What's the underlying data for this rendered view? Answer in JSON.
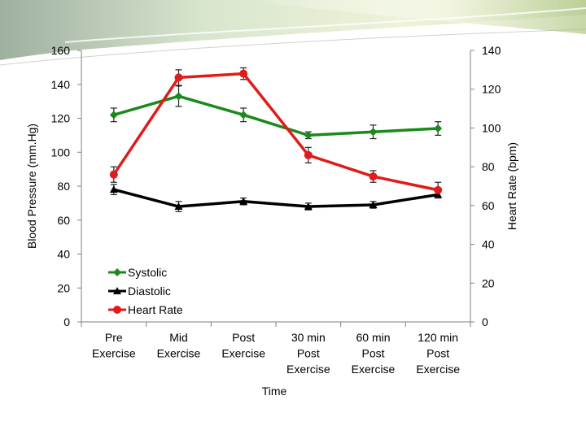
{
  "chart_data": {
    "type": "line",
    "categories": [
      [
        "Pre",
        "Exercise"
      ],
      [
        "Mid",
        "Exercise"
      ],
      [
        "Post",
        "Exercise"
      ],
      [
        "30 min",
        "Post",
        "Exercise"
      ],
      [
        "60 min",
        "Post",
        "Exercise"
      ],
      [
        "120 min",
        "Post",
        "Exercise"
      ]
    ],
    "xlabel": "Time",
    "ylabel_left": "Blood Pressure (mm.Hg)",
    "ylabel_right": "Heart Rate (bpm)",
    "ylim_left": [
      0,
      160
    ],
    "ylim_right": [
      0,
      140
    ],
    "yticks_left": [
      0,
      20,
      40,
      60,
      80,
      100,
      120,
      140,
      160
    ],
    "yticks_right": [
      0,
      20,
      40,
      60,
      80,
      100,
      120,
      140
    ],
    "series": [
      {
        "name": "Systolic",
        "axis": "left",
        "color": "#1a8a1a",
        "marker": "diamond",
        "values": [
          122,
          133,
          122,
          110,
          112,
          114
        ],
        "errors": [
          4,
          6,
          4,
          2,
          4,
          4
        ]
      },
      {
        "name": "Diastolic",
        "axis": "left",
        "color": "#000000",
        "marker": "triangle",
        "values": [
          78,
          68,
          71,
          68,
          69,
          75
        ],
        "errors": [
          3,
          3,
          2,
          2,
          2,
          2
        ]
      },
      {
        "name": "Heart Rate",
        "axis": "right",
        "color": "#e01b1b",
        "marker": "circle",
        "values": [
          76,
          126,
          128,
          86,
          75,
          68
        ],
        "errors": [
          4,
          4,
          3,
          4,
          3,
          4
        ]
      }
    ],
    "legend": [
      "Systolic",
      "Diastolic",
      "Heart Rate"
    ]
  }
}
